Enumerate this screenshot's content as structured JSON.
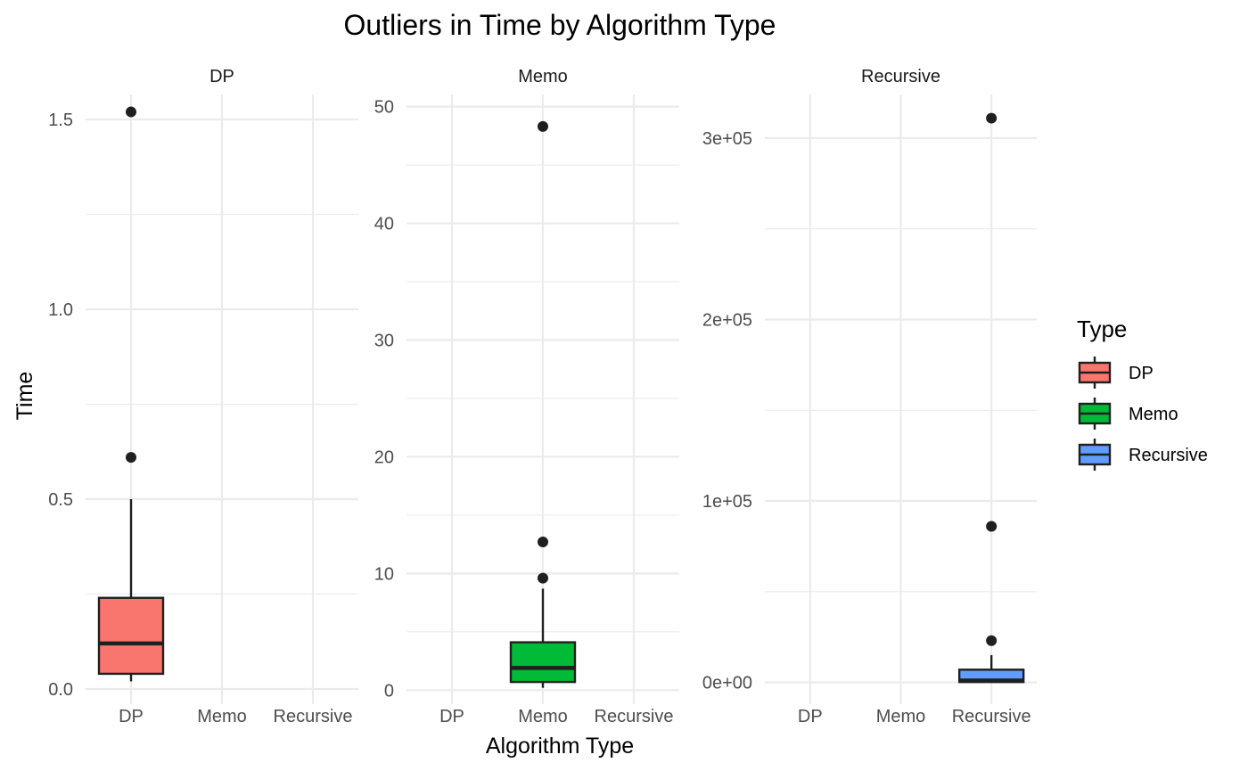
{
  "chart_data": {
    "type": "boxplot",
    "title": "Outliers in Time by Algorithm Type",
    "xlabel": "Algorithm Type",
    "ylabel": "Time",
    "categories": [
      "DP",
      "Memo",
      "Recursive"
    ],
    "legend": {
      "title": "Type",
      "position": "right",
      "entries": [
        "DP",
        "Memo",
        "Recursive"
      ]
    },
    "colors": {
      "DP": "#F8766D",
      "Memo": "#00BA38",
      "Recursive": "#619CFF"
    },
    "grid": true,
    "facets": [
      {
        "label": "DP",
        "category": "DP",
        "ylim": [
          -0.04,
          1.58
        ],
        "y_ticks": [
          0.0,
          0.5,
          1.0,
          1.5
        ],
        "y_tick_labels": [
          "0.0",
          "0.5",
          "1.0",
          "1.5"
        ],
        "y_minor": [
          0.25,
          0.75,
          1.25
        ],
        "box": {
          "lower_whisker": 0.02,
          "q1": 0.04,
          "median": 0.12,
          "q3": 0.24,
          "upper_whisker": 0.5
        },
        "outliers": [
          0.61,
          1.52
        ]
      },
      {
        "label": "Memo",
        "category": "Memo",
        "ylim": [
          -1.2,
          51.5
        ],
        "y_ticks": [
          0,
          10,
          20,
          30,
          40,
          50
        ],
        "y_tick_labels": [
          "0",
          "10",
          "20",
          "30",
          "40",
          "50"
        ],
        "y_minor": [
          5,
          15,
          25,
          35,
          45
        ],
        "box": {
          "lower_whisker": 0.2,
          "q1": 0.7,
          "median": 1.9,
          "q3": 4.1,
          "upper_whisker": 8.7
        },
        "outliers": [
          9.6,
          12.7,
          48.3
        ]
      },
      {
        "label": "Recursive",
        "category": "Recursive",
        "ylim": [
          -12000,
          327000
        ],
        "y_ticks": [
          0,
          100000,
          200000,
          300000
        ],
        "y_tick_labels": [
          "0e+00",
          "1e+05",
          "2e+05",
          "3e+05"
        ],
        "y_minor": [
          50000,
          150000,
          250000
        ],
        "box": {
          "lower_whisker": 0,
          "q1": 200,
          "median": 1000,
          "q3": 7000,
          "upper_whisker": 15000
        },
        "outliers": [
          23000,
          86000,
          311000
        ]
      }
    ]
  }
}
